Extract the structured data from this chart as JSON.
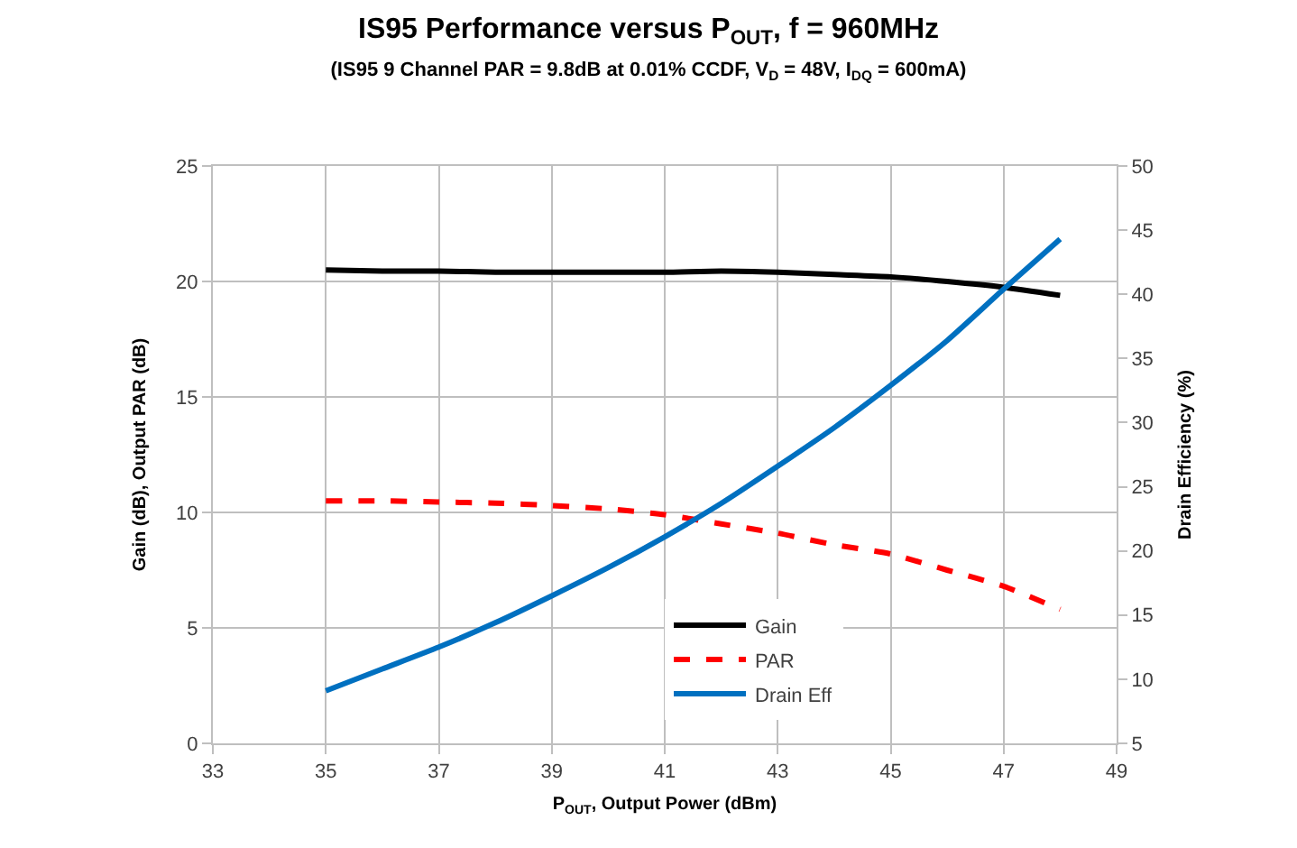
{
  "chart_data": {
    "type": "line",
    "title": "IS95 Performance versus P$_{OUT}$, f = 960MHz",
    "subtitle": "(IS95 9 Channel PAR = 9.8dB at 0.01% CCDF, V$_{D}$ = 48V, I$_{DQ}$ = 600mA)",
    "xlabel": "P$_{OUT}$, Output Power (dBm)",
    "ylabel": "Gain (dB), Output PAR (dB)",
    "y2label": "Drain Efficiency (%)",
    "x": [
      35,
      36,
      37,
      38,
      39,
      40,
      41,
      42,
      43,
      44,
      45,
      46,
      47,
      48
    ],
    "series": [
      {
        "name": "Gain",
        "color": "#000000",
        "line_style": "solid",
        "values": [
          20.5,
          20.45,
          20.45,
          20.4,
          20.4,
          20.4,
          20.4,
          20.45,
          20.4,
          20.3,
          20.2,
          20.0,
          19.75,
          19.4
        ]
      },
      {
        "name": "PAR",
        "color": "#ff0000",
        "line_style": "dashed",
        "values": [
          10.5,
          10.5,
          10.45,
          10.4,
          10.3,
          10.15,
          9.9,
          9.5,
          9.1,
          8.6,
          8.2,
          7.5,
          6.8,
          5.8
        ]
      },
      {
        "name": "Drain Eff",
        "color": "#0070c0",
        "line_style": "solid",
        "axis": "y2",
        "values": [
          9.1,
          10.8,
          12.5,
          14.4,
          16.5,
          18.7,
          21.1,
          23.7,
          26.6,
          29.6,
          32.9,
          36.4,
          40.4,
          44.3
        ]
      }
    ],
    "xlim": [
      33,
      49
    ],
    "xticks": [
      33,
      35,
      37,
      39,
      41,
      43,
      45,
      47,
      49
    ],
    "ylim": [
      0,
      25
    ],
    "yticks": [
      0,
      5,
      10,
      15,
      20,
      25
    ],
    "y2lim": [
      5,
      50
    ],
    "y2ticks": [
      5,
      10,
      15,
      20,
      25,
      30,
      35,
      40,
      45,
      50
    ],
    "grid": true,
    "legend": "bottom",
    "marker": "none"
  }
}
